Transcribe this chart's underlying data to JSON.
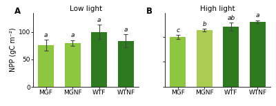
{
  "panel_A": {
    "title": "Low light",
    "label": "A",
    "categories": [
      "MGF",
      "MGNF",
      "WTF",
      "WTNF"
    ],
    "values": [
      76,
      80,
      100,
      84
    ],
    "errors": [
      10,
      5,
      13,
      12
    ],
    "sig_labels": [
      "a",
      "a",
      "a",
      "a"
    ],
    "bar_colors": [
      "#8DC63F",
      "#8DC63F",
      "#2D7A1F",
      "#2D7A1F"
    ],
    "ylabel": "NPP (gC m⁻²)"
  },
  "panel_B": {
    "title": "High light",
    "label": "B",
    "categories": [
      "MGF",
      "MGNF",
      "WTF",
      "WTNF"
    ],
    "values": [
      100,
      113,
      120,
      130
    ],
    "errors": [
      4,
      3,
      8,
      3
    ],
    "sig_labels": [
      "c",
      "b",
      "ab",
      "a"
    ],
    "bar_colors": [
      "#8DC63F",
      "#AACC50",
      "#2D7A1F",
      "#2D7A1F"
    ]
  },
  "ylim_A": [
    0,
    135
  ],
  "ylim_B": [
    0,
    148
  ],
  "yticks_A": [
    0,
    50,
    100
  ],
  "yticks_B": [
    0,
    50,
    100
  ],
  "bar_width": 0.6,
  "background_color": "#ffffff",
  "error_color": "#444444",
  "sig_fontsize": 6.5,
  "title_fontsize": 7.5,
  "label_fontsize": 8.5,
  "tick_fontsize": 6.5,
  "ylabel_fontsize": 7
}
